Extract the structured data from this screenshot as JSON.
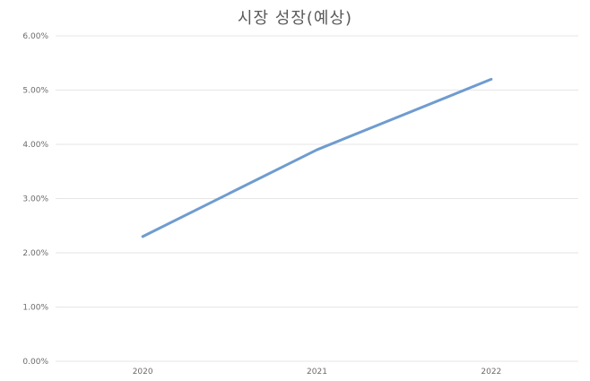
{
  "chart_data": {
    "type": "line",
    "title": "시장 성장(예상)",
    "categories": [
      "2020",
      "2021",
      "2022"
    ],
    "series": [
      {
        "values": [
          0.023,
          0.039,
          0.052
        ],
        "color": "#6f9ccf"
      }
    ],
    "ylim": [
      0,
      0.06
    ],
    "yticks": [
      0,
      0.01,
      0.02,
      0.03,
      0.04,
      0.05,
      0.06
    ],
    "ytick_labels": [
      "0.00%",
      "1.00%",
      "2.00%",
      "3.00%",
      "4.00%",
      "5.00%",
      "6.00%"
    ],
    "grid": true,
    "legend": "none"
  }
}
